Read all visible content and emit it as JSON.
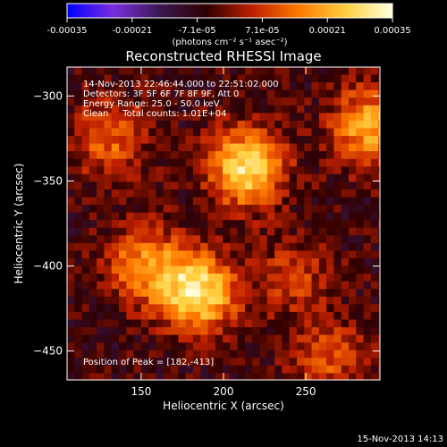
{
  "chart_data": {
    "type": "heatmap",
    "title": "Reconstructed RHESSI Image",
    "xlabel": "Heliocentric X (arcsec)",
    "ylabel": "Heliocentric Y (arcsec)",
    "xlim": [
      105,
      295
    ],
    "ylim": [
      -467,
      -283
    ],
    "x_ticks": [
      "150",
      "200",
      "250"
    ],
    "y_ticks": [
      "-300",
      "-350",
      "-400",
      "-450"
    ],
    "colorbar": {
      "ticks": [
        "-0.00035",
        "-0.00021",
        "-7.1e-05",
        "7.1e-05",
        "0.00021",
        "0.00035"
      ],
      "range": [
        -0.00035,
        0.00035
      ],
      "unit_label": "(photons cm⁻² s⁻¹ asec⁻²)",
      "colors": [
        "#0000ff",
        "#7a2de0",
        "#3a1850",
        "#300000",
        "#c02000",
        "#ff7a00",
        "#ffd040",
        "#ffffe0"
      ]
    },
    "annotations": {
      "time_range": "14-Nov-2013 22:46:44.000 to 22:51:02.000",
      "detectors": "Detectors: 3F 5F 6F 7F 8F 9F, Att 0",
      "energy": "Energy Range: 25.0 - 50.0 keV",
      "clean": "Clean     Total counts: 1.01E+04",
      "peak": "Position of Peak = [182,-413]"
    },
    "sources": [
      {
        "x": 211,
        "y": -340,
        "value": 0.00033
      },
      {
        "x": 182,
        "y": -413,
        "value": 0.00035
      },
      {
        "x": 150,
        "y": -397,
        "value": 0.00022
      },
      {
        "x": 286,
        "y": -316,
        "value": 0.00026
      },
      {
        "x": 128,
        "y": -323,
        "value": 0.00017
      },
      {
        "x": 262,
        "y": -452,
        "value": 0.00014
      },
      {
        "x": 240,
        "y": -405,
        "value": 0.00012
      }
    ]
  },
  "footer_date": "15-Nov-2013 14:13"
}
